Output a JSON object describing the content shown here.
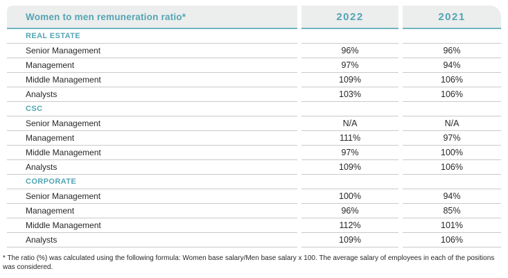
{
  "chart_data": {
    "type": "table",
    "title": "Women to men remuneration ratio*",
    "years": [
      "2022",
      "2021"
    ],
    "sections": [
      {
        "name": "REAL ESTATE",
        "rows": [
          {
            "label": "Senior Management",
            "values": [
              "96%",
              "96%"
            ]
          },
          {
            "label": "Management",
            "values": [
              "97%",
              "94%"
            ]
          },
          {
            "label": "Middle Management",
            "values": [
              "109%",
              "106%"
            ]
          },
          {
            "label": "Analysts",
            "values": [
              "103%",
              "106%"
            ]
          }
        ]
      },
      {
        "name": "CSC",
        "rows": [
          {
            "label": "Senior Management",
            "values": [
              "N/A",
              "N/A"
            ]
          },
          {
            "label": "Management",
            "values": [
              "111%",
              "97%"
            ]
          },
          {
            "label": "Middle Management",
            "values": [
              "97%",
              "100%"
            ]
          },
          {
            "label": "Analysts",
            "values": [
              "109%",
              "106%"
            ]
          }
        ]
      },
      {
        "name": "CORPORATE",
        "rows": [
          {
            "label": "Senior Management",
            "values": [
              "100%",
              "94%"
            ]
          },
          {
            "label": "Management",
            "values": [
              "96%",
              "85%"
            ]
          },
          {
            "label": "Middle Management",
            "values": [
              "112%",
              "101%"
            ]
          },
          {
            "label": "Analysts",
            "values": [
              "109%",
              "106%"
            ]
          }
        ]
      }
    ],
    "footnote": "* The ratio (%) was calculated using the following formula: Women base salary/Men base salary x 100. The average salary of employees in each of the positions was considered."
  },
  "theme": {
    "teal_text": "#52A5B3",
    "teal_line": "#6FB5C0",
    "header_bg": "#ECEDED",
    "row_line": "#C8C9CA",
    "text_dark": "#272728",
    "background": "#FFFFFF"
  }
}
